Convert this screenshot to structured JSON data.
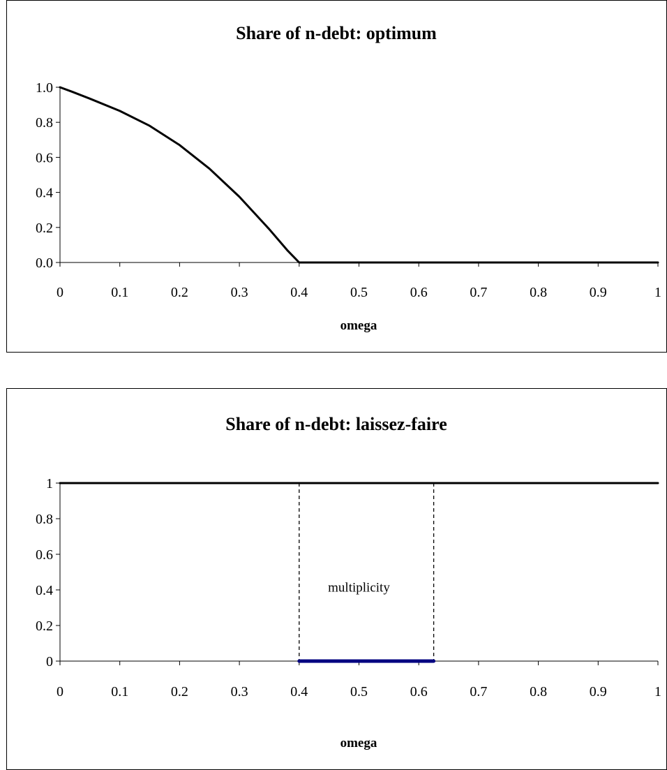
{
  "chart_data": [
    {
      "type": "line",
      "title": "Share of n-debt: optimum",
      "xlabel": "omega",
      "ylabel": "",
      "xlim": [
        0,
        1
      ],
      "ylim": [
        0,
        1
      ],
      "x_ticks": [
        "0",
        "0.1",
        "0.2",
        "0.3",
        "0.4",
        "0.5",
        "0.6",
        "0.7",
        "0.8",
        "0.9",
        "1"
      ],
      "y_ticks": [
        "0.0",
        "0.2",
        "0.4",
        "0.6",
        "0.8",
        "1.0"
      ],
      "grid": false,
      "series": [
        {
          "color": "#000000",
          "x": [
            0,
            0.02,
            0.05,
            0.1,
            0.15,
            0.2,
            0.25,
            0.3,
            0.35,
            0.38,
            0.4,
            0.5,
            0.6,
            0.7,
            0.8,
            0.9,
            1.0
          ],
          "y": [
            1.0,
            0.975,
            0.935,
            0.865,
            0.78,
            0.67,
            0.535,
            0.375,
            0.19,
            0.07,
            0.0,
            0.0,
            0.0,
            0.0,
            0.0,
            0.0,
            0.0
          ]
        }
      ]
    },
    {
      "type": "line",
      "title": "Share of n-debt: laissez-faire",
      "xlabel": "omega",
      "ylabel": "",
      "xlim": [
        0,
        1
      ],
      "ylim": [
        0,
        1
      ],
      "x_ticks": [
        "0",
        "0.1",
        "0.2",
        "0.3",
        "0.4",
        "0.5",
        "0.6",
        "0.7",
        "0.8",
        "0.9",
        "1"
      ],
      "y_ticks": [
        "0",
        "0.2",
        "0.4",
        "0.6",
        "0.8",
        "1"
      ],
      "grid": false,
      "series": [
        {
          "color": "#000000",
          "x": [
            0,
            1
          ],
          "y": [
            1,
            1
          ]
        },
        {
          "color": "#000080",
          "x": [
            0.4,
            0.625
          ],
          "y": [
            0,
            0
          ]
        }
      ],
      "vlines": [
        0.4,
        0.625
      ],
      "annotations": [
        {
          "text": "multiplicity",
          "x": 0.5,
          "y": 0.39
        }
      ]
    }
  ]
}
